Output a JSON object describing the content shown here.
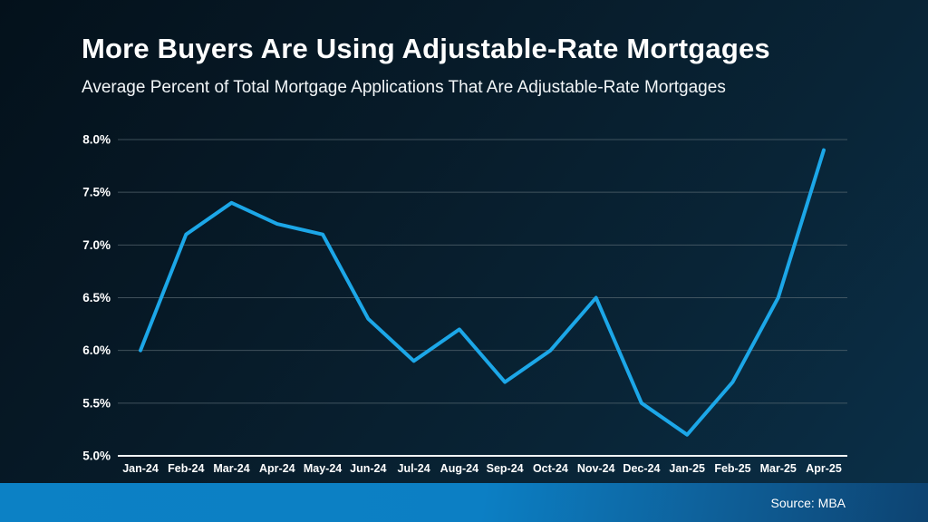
{
  "header": {
    "title": "More Buyers Are Using Adjustable-Rate Mortgages",
    "subtitle": "Average Percent of Total Mortgage Applications That Are Adjustable-Rate Mortgages"
  },
  "chart_data": {
    "type": "line",
    "title": "More Buyers Are Using Adjustable-Rate Mortgages",
    "subtitle": "Average Percent of Total Mortgage Applications That Are Adjustable-Rate Mortgages",
    "categories": [
      "Jan-24",
      "Feb-24",
      "Mar-24",
      "Apr-24",
      "May-24",
      "Jun-24",
      "Jul-24",
      "Aug-24",
      "Sep-24",
      "Oct-24",
      "Nov-24",
      "Dec-24",
      "Jan-25",
      "Feb-25",
      "Mar-25",
      "Apr-25"
    ],
    "values": [
      6.0,
      7.1,
      7.4,
      7.2,
      7.1,
      6.3,
      5.9,
      6.2,
      5.7,
      6.0,
      6.5,
      5.5,
      5.2,
      5.7,
      6.5,
      7.9
    ],
    "xlabel": "",
    "ylabel": "",
    "ylim": [
      5.0,
      8.0
    ],
    "ytick_step": 0.5,
    "ytick_suffix": "%",
    "grid": true,
    "legend_position": "none",
    "line_color": "#1ca7e8",
    "gridline_color": "#5f6f78",
    "axis_color": "#f2f6f7",
    "tick_label_color": "#ffffff"
  },
  "footer": {
    "source": "Source: MBA"
  },
  "colors": {
    "background_start": "#04111b",
    "background_end": "#0a3049",
    "footer_bar_start": "#0c81c5",
    "footer_bar_end": "#0d4371",
    "accent_line": "#1ca7e8"
  }
}
